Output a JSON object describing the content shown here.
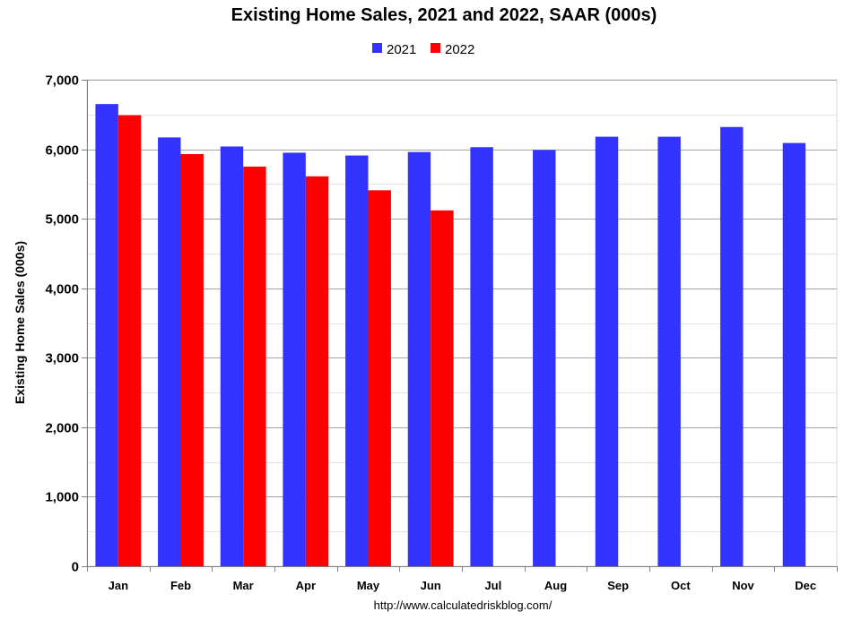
{
  "chart_data": {
    "type": "bar",
    "title": "Existing Home Sales,  2021 and 2022, SAAR (000s)",
    "ylabel": "Existing Home Sales (000s)",
    "xlabel": "",
    "source": "http://www.calculatedriskblog.com/",
    "categories": [
      "Jan",
      "Feb",
      "Mar",
      "Apr",
      "May",
      "Jun",
      "Jul",
      "Aug",
      "Sep",
      "Oct",
      "Nov",
      "Dec"
    ],
    "series": [
      {
        "name": "2021",
        "color": "#3333ff",
        "values": [
          6650,
          6170,
          6040,
          5950,
          5910,
          5960,
          6030,
          5990,
          6180,
          6180,
          6320,
          6090
        ]
      },
      {
        "name": "2022",
        "color": "#ff0000",
        "values": [
          6490,
          5930,
          5750,
          5610,
          5410,
          5120,
          null,
          null,
          null,
          null,
          null,
          null
        ]
      }
    ],
    "ylim": [
      0,
      7000
    ],
    "yticks": [
      0,
      1000,
      2000,
      3000,
      4000,
      5000,
      6000,
      7000
    ],
    "yticklabels": [
      "0",
      "1,000",
      "2,000",
      "3,000",
      "4,000",
      "5,000",
      "6,000",
      "7,000"
    ],
    "grid": true,
    "legend_position": "top-center"
  }
}
